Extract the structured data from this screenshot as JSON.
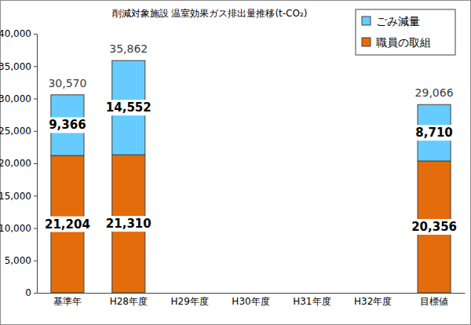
{
  "chart_data": {
    "type": "bar",
    "title": "削減対象施設 温室効果ガス排出量推移(t-CO₂)",
    "categories": [
      "基準年",
      "H28年度",
      "H29年度",
      "H30年度",
      "H31年度",
      "H32年度",
      "目標値"
    ],
    "series": [
      {
        "name": "職員の取組",
        "color": "#E46C0A",
        "values": [
          21204,
          21310,
          null,
          null,
          null,
          null,
          20356
        ],
        "value_labels": [
          "21,204",
          "21,310",
          null,
          null,
          null,
          null,
          "20,356"
        ]
      },
      {
        "name": "ごみ減量",
        "color": "#66CCFF",
        "values": [
          9366,
          14552,
          null,
          null,
          null,
          null,
          8710
        ],
        "value_labels": [
          "9,366",
          "14,552",
          null,
          null,
          null,
          null,
          "8,710"
        ]
      }
    ],
    "totals": [
      30570,
      35862,
      null,
      null,
      null,
      null,
      29066
    ],
    "total_labels": [
      "30,570",
      "35,862",
      null,
      null,
      null,
      null,
      "29,066"
    ],
    "ylim": [
      0,
      40000
    ],
    "yticks": [
      0,
      {
        "value": 5000,
        "label": "5,000"
      },
      {
        "value": 10000,
        "label": "10,000"
      },
      {
        "value": 15000,
        "label": "15,000"
      },
      {
        "value": 20000,
        "label": "20,000"
      },
      {
        "value": 25000,
        "label": "25,000"
      },
      {
        "value": 30000,
        "label": "30,000"
      },
      {
        "value": 35000,
        "label": "35,000"
      },
      {
        "value": 40000,
        "label": "40,000"
      }
    ],
    "stacked": true,
    "data_labels": true,
    "grid": false,
    "legend": "top-right"
  }
}
